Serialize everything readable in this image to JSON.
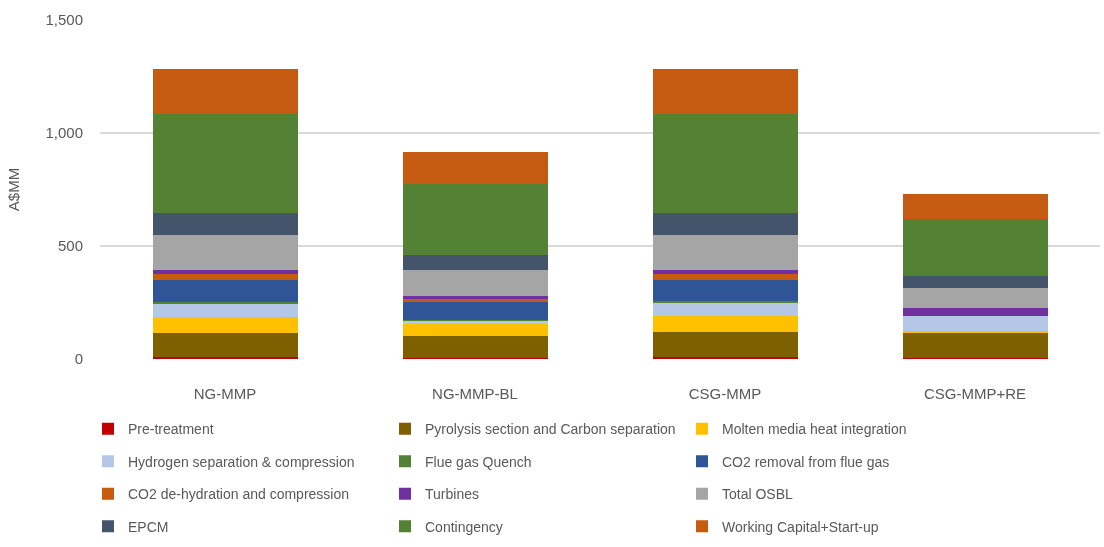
{
  "chart_data": {
    "type": "bar",
    "stacked": true,
    "ylabel": "A$MM",
    "categories": [
      "NG-MMP",
      "NG-MMP-BL",
      "CSG-MMP",
      "CSG-MMP+RE"
    ],
    "ylim": [
      0,
      1500
    ],
    "yticks": [
      0,
      500,
      {
        "value": 1000,
        "label": "1,000"
      },
      {
        "value": 1500,
        "label": "1,500"
      }
    ],
    "grid": "y",
    "legend": "bottom",
    "series": [
      {
        "name": "Pre-treatment",
        "color": "#c00000",
        "values": [
          7,
          6,
          9,
          3
        ]
      },
      {
        "name": "Pyrolysis section and Carbon separation",
        "color": "#7f6000",
        "values": [
          110,
          94,
          112,
          114
        ]
      },
      {
        "name": "Molten media heat integration",
        "color": "#ffc000",
        "values": [
          67,
          54,
          68,
          9
        ]
      },
      {
        "name": "Hydrogen separation & compression",
        "color": "#b4c7e7",
        "values": [
          59,
          13,
          58,
          63
        ]
      },
      {
        "name": "Flue gas Quench",
        "color": "#548235",
        "values": [
          8,
          7,
          9,
          0
        ]
      },
      {
        "name": "CO2 removal from flue gas",
        "color": "#2f5597",
        "values": [
          98,
          79,
          93,
          0
        ]
      },
      {
        "name": "CO2 de-hydration and compression",
        "color": "#c55a11",
        "values": [
          27,
          13,
          27,
          0
        ]
      },
      {
        "name": "Turbines",
        "color": "#7030a0",
        "values": [
          17,
          13,
          17,
          35
        ]
      },
      {
        "name": "Total OSBL",
        "color": "#a5a5a5",
        "values": [
          157,
          114,
          157,
          90
        ]
      },
      {
        "name": "EPCM",
        "color": "#44546a",
        "values": [
          96,
          68,
          96,
          53
        ]
      },
      {
        "name": "Contingency",
        "color": "#548235",
        "values": [
          440,
          315,
          440,
          251
        ]
      },
      {
        "name": "Working Capital+Start-up",
        "color": "#c55a11",
        "values": [
          195,
          141,
          195,
          111
        ]
      }
    ]
  }
}
